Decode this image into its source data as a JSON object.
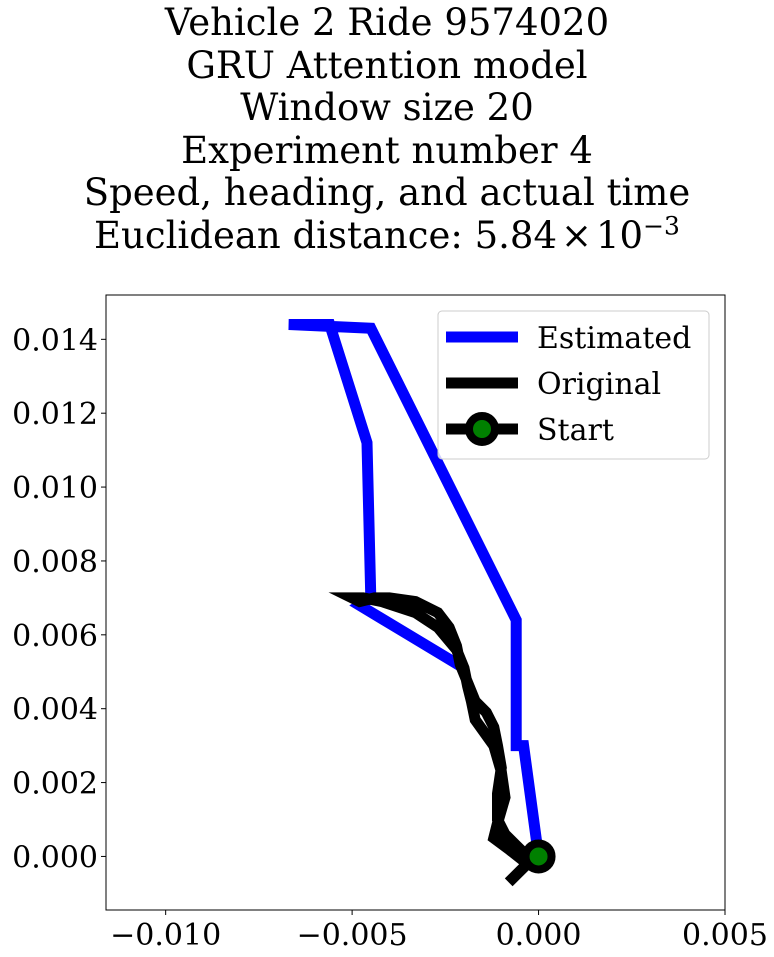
{
  "chart_data": {
    "type": "line",
    "title_lines": [
      "Vehicle 2 Ride 9574020",
      "GRU Attention model",
      "Window size 20",
      "Experiment number 4",
      "Speed, heading, and actual time"
    ],
    "distance_label": "Euclidean distance: ",
    "distance_mantissa": "5.84",
    "distance_times": "×",
    "distance_base": "10",
    "distance_exponent": "−3",
    "xlim": [
      -0.0116,
      0.005
    ],
    "ylim": [
      -0.00145,
      0.0152
    ],
    "x_ticks": [
      {
        "value": -0.01,
        "label": "−0.010"
      },
      {
        "value": -0.005,
        "label": "−0.005"
      },
      {
        "value": 0.0,
        "label": "0.000"
      },
      {
        "value": 0.005,
        "label": "0.005"
      }
    ],
    "y_ticks": [
      {
        "value": 0.0,
        "label": "0.000"
      },
      {
        "value": 0.002,
        "label": "0.002"
      },
      {
        "value": 0.004,
        "label": "0.004"
      },
      {
        "value": 0.006,
        "label": "0.006"
      },
      {
        "value": 0.008,
        "label": "0.008"
      },
      {
        "value": 0.01,
        "label": "0.010"
      },
      {
        "value": 0.012,
        "label": "0.012"
      },
      {
        "value": 0.014,
        "label": "0.014"
      }
    ],
    "series": [
      {
        "name": "Estimated",
        "color": "#0000ff",
        "x": [
          0.0,
          -0.0004,
          -0.0006,
          -0.0006,
          -0.0045,
          -0.0067,
          -0.0056,
          -0.0046,
          -0.0045,
          -0.0048,
          -0.002
        ],
        "y": [
          0.0,
          0.003,
          0.003,
          0.0064,
          0.0143,
          0.0144,
          0.0144,
          0.0112,
          0.007,
          0.0068,
          0.0051
        ]
      },
      {
        "name": "Original",
        "color": "#000000",
        "x": [
          -0.0008,
          -0.0005,
          -0.0003,
          -0.0008,
          -0.0012,
          -0.0011,
          -0.0009,
          -0.001,
          -0.0012,
          -0.0017,
          -0.0018,
          -0.0019,
          -0.002,
          -0.0022,
          -0.0027,
          -0.0033,
          -0.0042,
          -0.0047,
          -0.005,
          -0.0048,
          -0.0044,
          -0.004,
          -0.0033,
          -0.0027,
          -0.0024,
          -0.0022,
          -0.0021,
          -0.0019,
          -0.0017,
          -0.0014,
          -0.0012,
          -0.0011,
          -0.001,
          -0.0011,
          -0.0011,
          -0.0009,
          -0.0006,
          -0.0004,
          -0.0002,
          0.0
        ],
        "y": [
          -0.0007,
          -0.0004,
          -0.0002,
          0.0002,
          0.0005,
          0.0009,
          0.0016,
          0.0023,
          0.003,
          0.0037,
          0.0042,
          0.0046,
          0.0051,
          0.0056,
          0.0062,
          0.0066,
          0.0069,
          0.007,
          0.007,
          0.0069,
          0.007,
          0.007,
          0.0069,
          0.0066,
          0.0062,
          0.0057,
          0.0052,
          0.0047,
          0.0042,
          0.0039,
          0.0035,
          0.003,
          0.0024,
          0.0017,
          0.001,
          0.0006,
          0.0003,
          0.0001,
          0.0,
          0.0
        ]
      },
      {
        "name": "Start",
        "color": "#000000",
        "marker_face": "#008000",
        "x": [
          0.0
        ],
        "y": [
          0.0
        ]
      }
    ],
    "legend_position": "top-right",
    "grid": false
  }
}
